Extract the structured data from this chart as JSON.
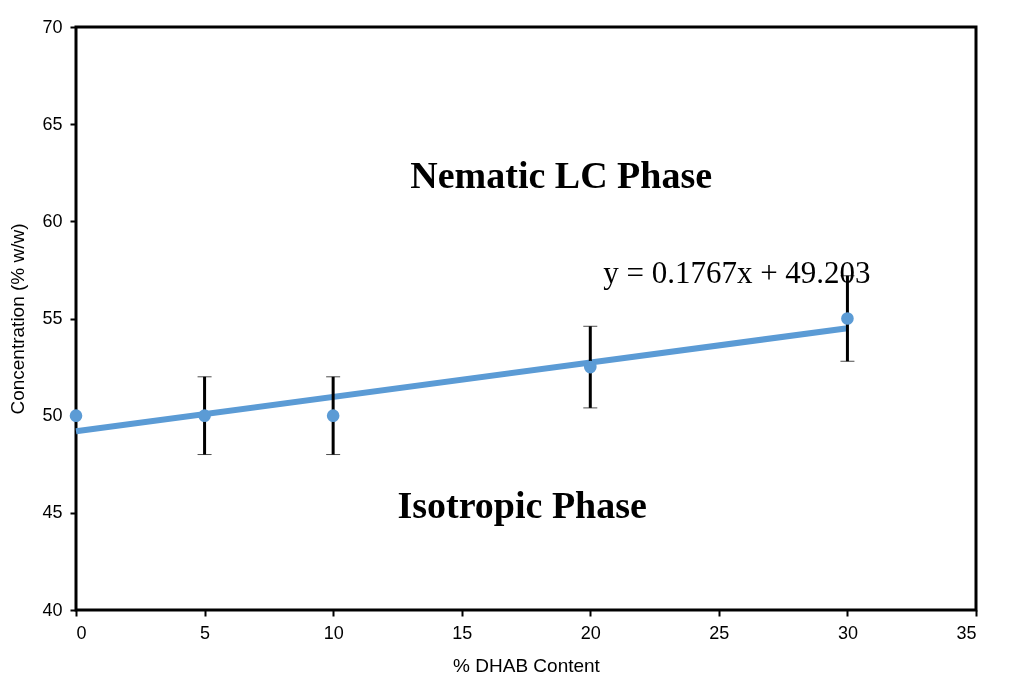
{
  "chart_data": {
    "type": "scatter",
    "xlabel": "% DHAB Content",
    "ylabel": "Concentration (% w/w)",
    "x": [
      0,
      5,
      10,
      20,
      30
    ],
    "series": [
      {
        "type": "scatter",
        "color": "#5b9bd5",
        "marker": "circle",
        "values": [
          50,
          50,
          50,
          52.5,
          55
        ],
        "errors": [
          null,
          2,
          2,
          2.1,
          2.2
        ]
      },
      {
        "type": "line",
        "color": "#5b9bd5",
        "marker": "none",
        "x": [
          0,
          30
        ],
        "values": [
          49.2,
          54.5
        ]
      }
    ],
    "xlim": [
      0,
      35
    ],
    "xticks": [
      0,
      5,
      10,
      15,
      20,
      25,
      30,
      35
    ],
    "ylim": [
      40,
      70
    ],
    "yticks": [
      40,
      45,
      50,
      55,
      60,
      65,
      70
    ],
    "annotations": [
      "Nematic LC Phase",
      "Isotropic Phase",
      "y = 0.1767x + 49.203"
    ]
  }
}
